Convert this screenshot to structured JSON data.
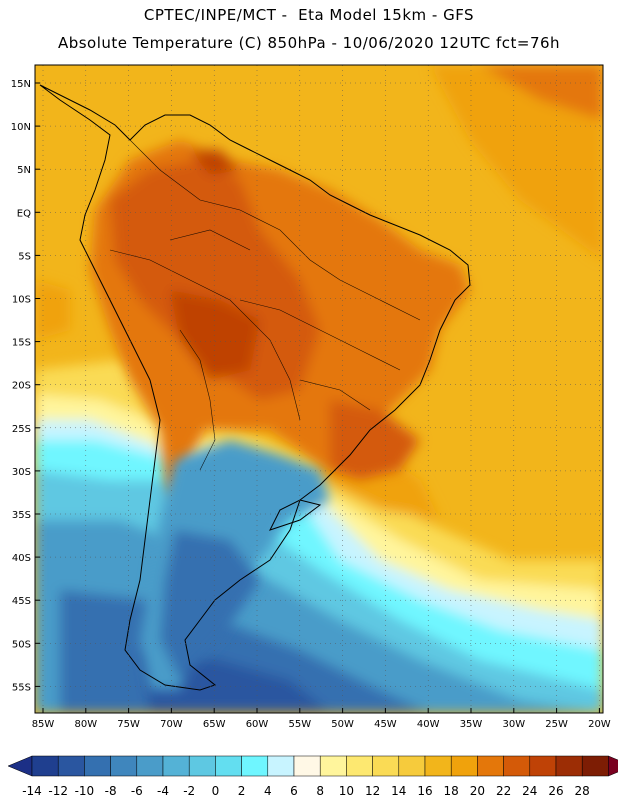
{
  "header": {
    "line1": "CPTEC/INPE/MCT -  Eta Model 15km - GFS",
    "line2": "Absolute Temperature (C) 850hPa - 10/06/2020 12UTC fct=76h"
  },
  "map": {
    "lat_labels": [
      "15N",
      "10N",
      "5N",
      "EQ",
      "5S",
      "10S",
      "15S",
      "20S",
      "25S",
      "30S",
      "35S",
      "40S",
      "45S",
      "50S",
      "55S"
    ],
    "lon_labels": [
      "85W",
      "80W",
      "75W",
      "70W",
      "65W",
      "60W",
      "55W",
      "50W",
      "45W",
      "40W",
      "35W",
      "30W",
      "25W",
      "20W"
    ]
  },
  "colorbar": {
    "labels": [
      "-14",
      "-12",
      "-10",
      "-8",
      "-6",
      "-4",
      "-2",
      "0",
      "2",
      "4",
      "6",
      "8",
      "10",
      "12",
      "14",
      "16",
      "18",
      "20",
      "22",
      "24",
      "26",
      "28"
    ],
    "colors": [
      "#1f3f8f",
      "#2a56a0",
      "#3470b0",
      "#3f86bd",
      "#4a9cc9",
      "#54b2d6",
      "#5ec8e2",
      "#63def0",
      "#6ff6ff",
      "#c8f4ff",
      "#fff8e6",
      "#fff59c",
      "#fde870",
      "#fadb55",
      "#f6cb3c",
      "#f2b51b",
      "#f0a20c",
      "#e4770a",
      "#d45a08",
      "#bf4206",
      "#9c2d05",
      "#7d1d04"
    ],
    "under_color": "#1c2f86",
    "over_color": "#7a0020"
  }
}
